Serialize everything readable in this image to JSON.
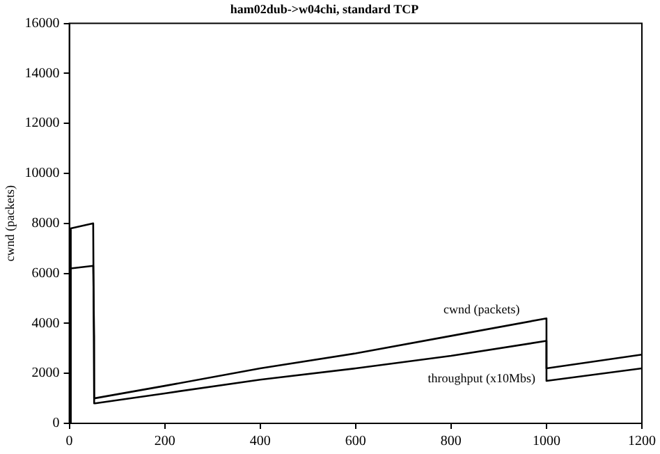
{
  "chart_data": {
    "type": "line",
    "title": "ham02dub->w04chi, standard TCP",
    "ylabel": "cwnd (packets)",
    "xlim": [
      0,
      1200
    ],
    "ylim": [
      0,
      16000
    ],
    "xticks": [
      0,
      200,
      400,
      600,
      800,
      1000,
      1200
    ],
    "yticks": [
      0,
      2000,
      4000,
      6000,
      8000,
      10000,
      12000,
      14000,
      16000
    ],
    "grid": false,
    "legend": false,
    "marker": "none",
    "line_style": "solid",
    "series": [
      {
        "name": "cwnd (packets)",
        "color": "#000000",
        "x": [
          0,
          3,
          3,
          50,
          52,
          200,
          400,
          600,
          800,
          1000,
          1000,
          1200
        ],
        "values": [
          0,
          0,
          7800,
          8000,
          1000,
          1500,
          2200,
          2800,
          3500,
          4200,
          2200,
          2750
        ]
      },
      {
        "name": "throughput (x10Mbs)",
        "color": "#000000",
        "x": [
          0,
          3,
          3,
          50,
          52,
          52,
          54,
          200,
          400,
          600,
          800,
          1000,
          1000,
          1200
        ],
        "values": [
          0,
          0,
          6200,
          6300,
          3500,
          800,
          800,
          1200,
          1750,
          2200,
          2700,
          3300,
          1700,
          2200
        ]
      }
    ]
  }
}
